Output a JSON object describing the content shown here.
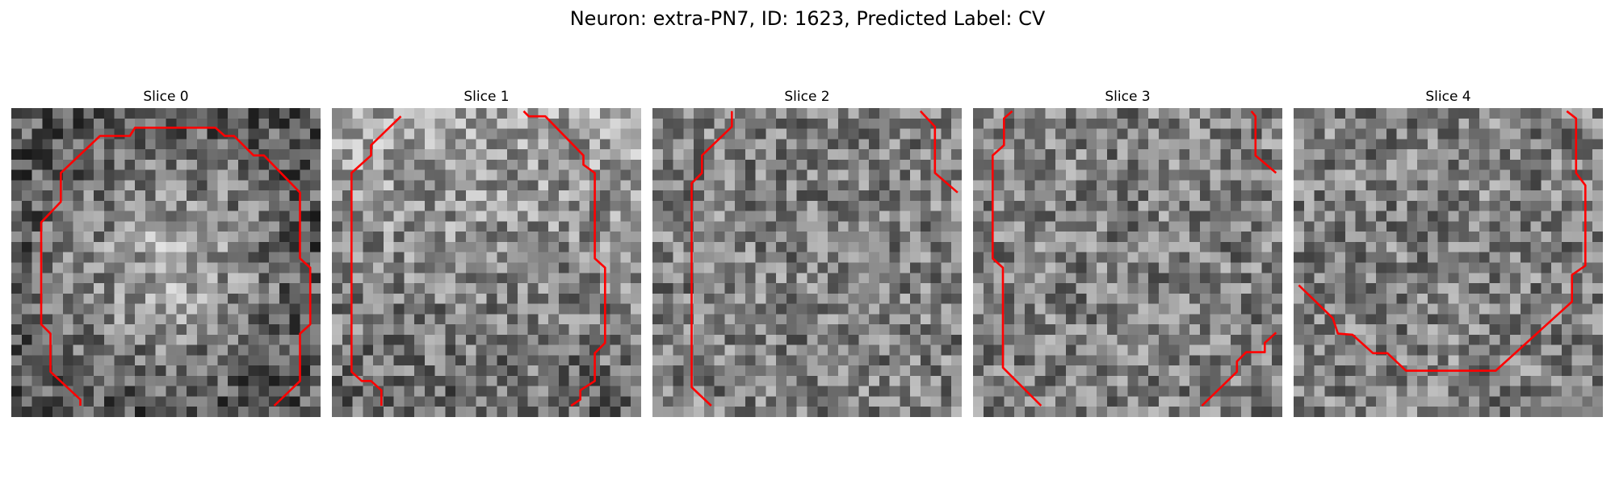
{
  "figure": {
    "title": "Neuron: extra-PN7, ID: 1623, Predicted Label: CV",
    "contour_color": "#ff0000",
    "grid_size": 30
  },
  "slices": [
    {
      "title": "Slice 0",
      "seed": 11,
      "texture": "blob",
      "contours": [
        [
          [
            6.7,
            28.9
          ],
          [
            6.7,
            28.3
          ],
          [
            3.8,
            25.6
          ],
          [
            3.8,
            21.9
          ],
          [
            2.9,
            21.0
          ],
          [
            2.9,
            11.1
          ],
          [
            4.8,
            9.1
          ],
          [
            4.8,
            6.3
          ],
          [
            8.6,
            2.7
          ],
          [
            11.5,
            2.7
          ],
          [
            12.0,
            1.9
          ],
          [
            19.8,
            1.9
          ],
          [
            20.7,
            2.7
          ],
          [
            21.6,
            2.7
          ],
          [
            23.5,
            4.6
          ],
          [
            24.5,
            4.6
          ],
          [
            28.0,
            8.2
          ],
          [
            28.0,
            14.6
          ],
          [
            29.0,
            15.5
          ],
          [
            29.0,
            21.0
          ],
          [
            28.0,
            21.9
          ],
          [
            28.0,
            26.5
          ],
          [
            25.5,
            28.9
          ]
        ]
      ]
    },
    {
      "title": "Slice 1",
      "seed": 22,
      "texture": "bright-top",
      "contours": [
        [
          [
            4.8,
            28.9
          ],
          [
            4.8,
            27.4
          ],
          [
            3.8,
            26.5
          ],
          [
            2.9,
            26.5
          ],
          [
            1.9,
            25.6
          ],
          [
            1.9,
            6.3
          ],
          [
            3.8,
            4.6
          ],
          [
            3.8,
            3.6
          ],
          [
            6.7,
            0.8
          ]
        ],
        [
          [
            18.6,
            0.3
          ],
          [
            19.1,
            0.8
          ],
          [
            20.7,
            0.8
          ],
          [
            24.4,
            4.6
          ],
          [
            24.4,
            5.5
          ],
          [
            25.5,
            6.3
          ],
          [
            25.5,
            14.6
          ],
          [
            26.5,
            15.5
          ],
          [
            26.5,
            22.8
          ],
          [
            25.5,
            23.8
          ],
          [
            25.5,
            26.5
          ],
          [
            24.1,
            27.4
          ],
          [
            24.1,
            28.3
          ],
          [
            23.2,
            28.9
          ]
        ]
      ]
    },
    {
      "title": "Slice 2",
      "seed": 33,
      "texture": "plain",
      "contours": [
        [
          [
            5.7,
            28.9
          ],
          [
            3.8,
            27.1
          ],
          [
            3.8,
            7.3
          ],
          [
            4.8,
            6.3
          ],
          [
            4.8,
            4.6
          ],
          [
            7.7,
            1.8
          ],
          [
            7.7,
            0.3
          ]
        ],
        [
          [
            26.0,
            0.3
          ],
          [
            27.4,
            1.8
          ],
          [
            27.4,
            6.3
          ],
          [
            29.6,
            8.2
          ]
        ]
      ]
    },
    {
      "title": "Slice 3",
      "seed": 44,
      "texture": "plain",
      "contours": [
        [
          [
            6.6,
            28.9
          ],
          [
            2.9,
            25.2
          ],
          [
            2.9,
            15.5
          ],
          [
            1.9,
            14.6
          ],
          [
            1.9,
            4.6
          ],
          [
            3.0,
            3.6
          ],
          [
            3.0,
            1.0
          ],
          [
            3.8,
            0.3
          ]
        ],
        [
          [
            27.0,
            0.3
          ],
          [
            27.4,
            0.8
          ],
          [
            27.4,
            4.6
          ],
          [
            29.4,
            6.3
          ]
        ],
        [
          [
            22.2,
            28.9
          ],
          [
            25.6,
            25.6
          ],
          [
            25.6,
            24.6
          ],
          [
            26.5,
            23.7
          ],
          [
            28.3,
            23.7
          ],
          [
            28.3,
            22.8
          ],
          [
            29.4,
            21.8
          ]
        ]
      ]
    },
    {
      "title": "Slice 4",
      "seed": 55,
      "texture": "plain",
      "contours": [
        [
          [
            0.5,
            17.2
          ],
          [
            3.8,
            20.4
          ],
          [
            4.3,
            21.9
          ],
          [
            5.7,
            22.0
          ],
          [
            7.7,
            23.8
          ],
          [
            9.1,
            23.8
          ],
          [
            10.9,
            25.5
          ],
          [
            19.6,
            25.5
          ],
          [
            27.0,
            18.8
          ],
          [
            27.0,
            16.2
          ],
          [
            28.3,
            15.3
          ],
          [
            28.3,
            7.5
          ],
          [
            27.4,
            6.3
          ],
          [
            27.4,
            1.0
          ],
          [
            26.5,
            0.3
          ]
        ]
      ]
    }
  ]
}
